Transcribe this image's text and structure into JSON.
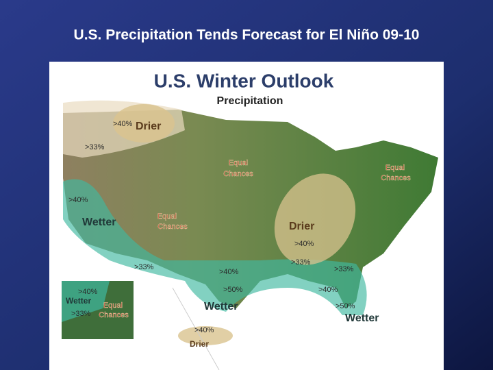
{
  "slide": {
    "title": "U.S. Precipitation Tends Forecast for El Niño 09-10"
  },
  "map": {
    "title": "U.S. Winter Outlook",
    "subtitle": "Precipitation",
    "labels": [
      ">40%",
      "Drier",
      ">33%",
      "Equal",
      "Chances",
      ">40%",
      "Wetter",
      "Equal",
      "Chances",
      "Equal",
      "Chances",
      "Drier",
      ">40%",
      ">33%",
      ">33%",
      ">40%",
      ">33%",
      ">50%",
      "Wetter",
      ">40%",
      ">50%",
      "Wetter",
      ">40%",
      "Wetter",
      ">33%",
      "Equal",
      "Chances",
      ">40%",
      "Drier"
    ]
  }
}
